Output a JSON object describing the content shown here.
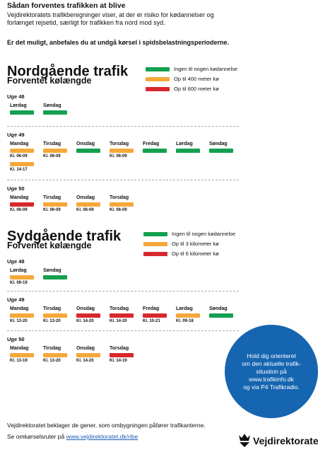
{
  "header": {
    "title": "Sådan forventes trafikken at blive",
    "paragraph_lines": [
      "Vejdirektoratets trafikberegninger viser, at der er risiko for kødannelser og",
      "forlænget rejsetid, særligt for trafikken fra nord mod syd."
    ],
    "emphasis": "Er det muligt, anbefales du at undgå kørsel i spidsbelastningsperioderne."
  },
  "sections": [
    {
      "title": "Nordgående trafik",
      "subtitle": "Forventet kølængde",
      "legend": [
        {
          "label": "Ingen til nogen kødannelse",
          "color": "#13a04f"
        },
        {
          "label": "Op til 400 meter kø",
          "color": "#f5a83a"
        },
        {
          "label": "Op til 600 meter kø",
          "color": "#d9272e"
        }
      ],
      "weeks": [
        {
          "label": "Uge 48",
          "days": [
            {
              "day": "Lørdag",
              "bars": [
                {
                  "color": "#13a04f"
                }
              ]
            },
            {
              "day": "Søndag",
              "bars": [
                {
                  "color": "#13a04f"
                }
              ]
            }
          ]
        },
        {
          "label": "Uge 49",
          "days": [
            {
              "day": "Mandag",
              "bars": [
                {
                  "color": "#f5a83a",
                  "time": "Kl. 06-09"
                },
                {
                  "color": "#f5a83a",
                  "time": "Kl. 14-17"
                }
              ]
            },
            {
              "day": "Tirsdag",
              "bars": [
                {
                  "color": "#f5a83a",
                  "time": "Kl. 06-09"
                }
              ]
            },
            {
              "day": "Onsdag",
              "bars": [
                {
                  "color": "#13a04f"
                }
              ]
            },
            {
              "day": "Torsdag",
              "bars": [
                {
                  "color": "#f5a83a",
                  "time": "Kl. 06-09"
                }
              ]
            },
            {
              "day": "Fredag",
              "bars": [
                {
                  "color": "#13a04f"
                }
              ]
            },
            {
              "day": "Lørdag",
              "bars": [
                {
                  "color": "#13a04f"
                }
              ]
            },
            {
              "day": "Søndag",
              "bars": [
                {
                  "color": "#13a04f"
                }
              ]
            }
          ]
        },
        {
          "label": "Uge 50",
          "days": [
            {
              "day": "Mandag",
              "bars": [
                {
                  "color": "#d9272e",
                  "time": "Kl. 06-09"
                }
              ]
            },
            {
              "day": "Tirsdag",
              "bars": [
                {
                  "color": "#f5a83a",
                  "time": "Kl. 06-09"
                }
              ]
            },
            {
              "day": "Onsdag",
              "bars": [
                {
                  "color": "#f5a83a",
                  "time": "Kl. 06-09"
                }
              ]
            },
            {
              "day": "Torsdag",
              "bars": [
                {
                  "color": "#f5a83a",
                  "time": "Kl. 06-09"
                }
              ]
            }
          ]
        }
      ]
    },
    {
      "title": "Sydgående trafik",
      "subtitle": "Forventet kølængde",
      "legend": [
        {
          "label": "Ingen til nogen kødannelse",
          "color": "#13a04f"
        },
        {
          "label": "Op til 3 kilometer kø",
          "color": "#f5a83a"
        },
        {
          "label": "Op til 6 kilometer kø",
          "color": "#d9272e"
        }
      ],
      "weeks": [
        {
          "label": "Uge 48",
          "days": [
            {
              "day": "Lørdag",
              "bars": [
                {
                  "color": "#f5a83a",
                  "time": "Kl. 09-19"
                }
              ]
            },
            {
              "day": "Søndag",
              "bars": [
                {
                  "color": "#13a04f"
                }
              ]
            }
          ]
        },
        {
          "label": "Uge 49",
          "days": [
            {
              "day": "Mandag",
              "bars": [
                {
                  "color": "#f5a83a",
                  "time": "Kl. 13-20"
                }
              ]
            },
            {
              "day": "Tirsdag",
              "bars": [
                {
                  "color": "#f5a83a",
                  "time": "Kl. 13-20"
                }
              ]
            },
            {
              "day": "Onsdag",
              "bars": [
                {
                  "color": "#d9272e",
                  "time": "Kl. 14-20"
                }
              ]
            },
            {
              "day": "Torsdag",
              "bars": [
                {
                  "color": "#d9272e",
                  "time": "Kl. 14-20"
                }
              ]
            },
            {
              "day": "Fredag",
              "bars": [
                {
                  "color": "#d9272e",
                  "time": "Kl. 10-21"
                }
              ]
            },
            {
              "day": "Lørdag",
              "bars": [
                {
                  "color": "#f5a83a",
                  "time": "Kl. 09-18"
                }
              ]
            },
            {
              "day": "Søndag",
              "bars": [
                {
                  "color": "#13a04f"
                }
              ]
            }
          ]
        },
        {
          "label": "Uge 50",
          "days": [
            {
              "day": "Mandag",
              "bars": [
                {
                  "color": "#f5a83a",
                  "time": "Kl. 13-19"
                }
              ]
            },
            {
              "day": "Tirsdag",
              "bars": [
                {
                  "color": "#f5a83a",
                  "time": "Kl. 13-20"
                }
              ]
            },
            {
              "day": "Onsdag",
              "bars": [
                {
                  "color": "#f5a83a",
                  "time": "Kl. 14-20"
                }
              ]
            },
            {
              "day": "Torsdag",
              "bars": [
                {
                  "color": "#d9272e",
                  "time": "Kl. 14-19"
                }
              ]
            }
          ]
        }
      ]
    }
  ],
  "info_box": {
    "lines": [
      "Hold dig orienteret",
      "om den aktuelle trafik-",
      "situation på",
      "www.trafikinfo.dk",
      "og via P4 Trafikradio."
    ]
  },
  "footer": {
    "apology": "Vejdirektoratet beklager de gener, som ombygningen påfører trafikanterne.",
    "route_prefix": "Se omkørselsruter på",
    "route_link": "www.vejdirektoratet.dk/ribe"
  },
  "logo": {
    "text": "Vejdirektoratet"
  }
}
